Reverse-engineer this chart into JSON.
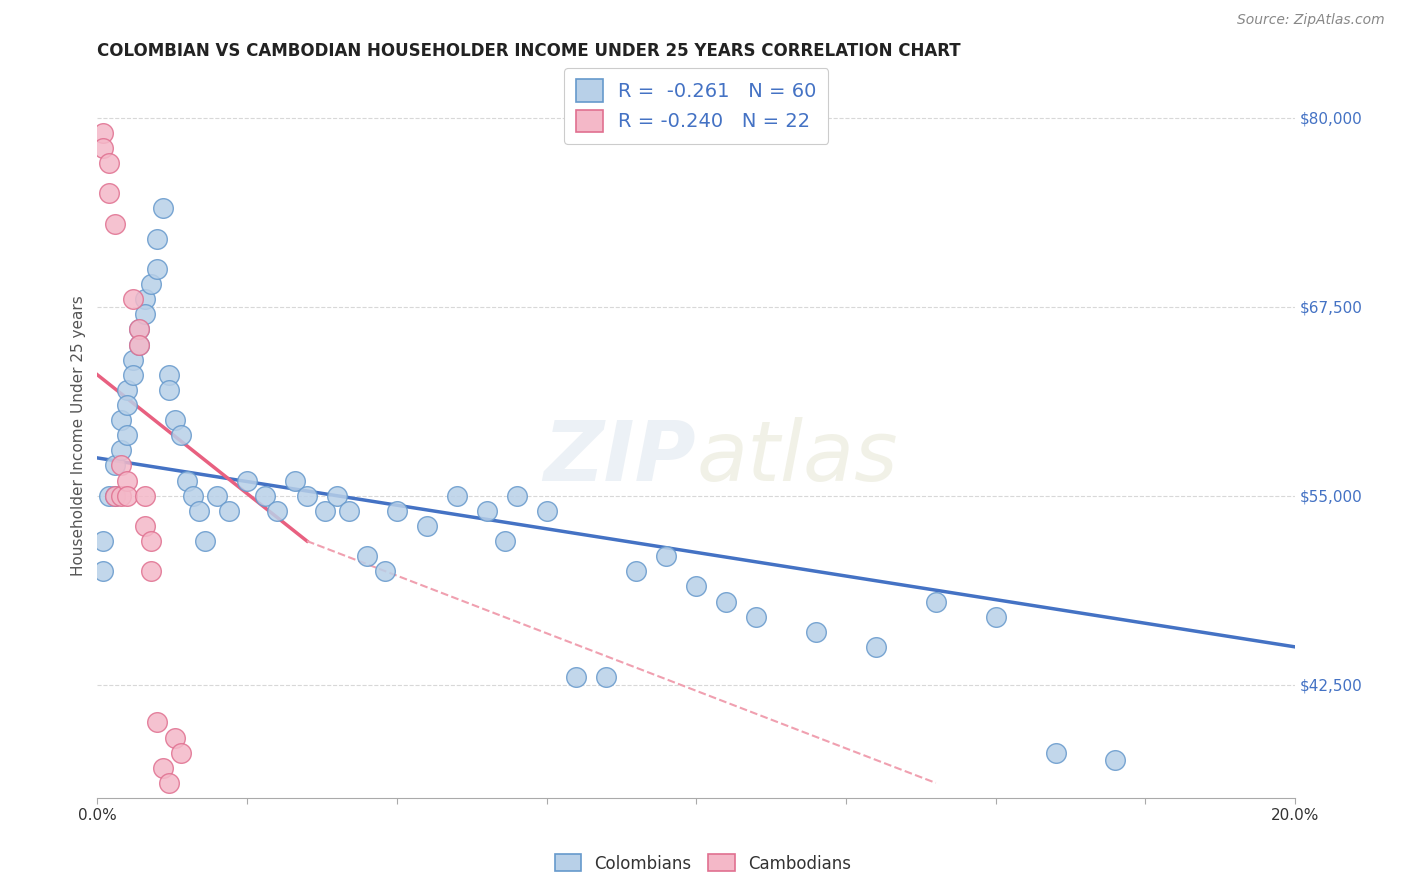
{
  "title": "COLOMBIAN VS CAMBODIAN HOUSEHOLDER INCOME UNDER 25 YEARS CORRELATION CHART",
  "source": "Source: ZipAtlas.com",
  "ylabel": "Householder Income Under 25 years",
  "xlim": [
    0.0,
    0.2
  ],
  "ylim": [
    35000,
    83000
  ],
  "yticks": [
    42500,
    55000,
    67500,
    80000
  ],
  "ytick_labels": [
    "$42,500",
    "$55,000",
    "$67,500",
    "$80,000"
  ],
  "xticks": [
    0.0,
    0.025,
    0.05,
    0.075,
    0.1,
    0.125,
    0.15,
    0.175,
    0.2
  ],
  "xtick_labels": [
    "0.0%",
    "",
    "",
    "",
    "",
    "",
    "",
    "",
    "20.0%"
  ],
  "color_colombian_fill": "#b8d0e8",
  "color_colombian_edge": "#6699cc",
  "color_cambodian_fill": "#f4b8c8",
  "color_cambodian_edge": "#e07090",
  "color_line_colombian": "#4472c4",
  "color_line_cambodian": "#e86080",
  "color_line_cambodian_dashed": "#f0a0b0",
  "watermark": "ZIPatlas",
  "colombian_x": [
    0.001,
    0.001,
    0.002,
    0.003,
    0.003,
    0.004,
    0.004,
    0.005,
    0.005,
    0.005,
    0.006,
    0.006,
    0.007,
    0.007,
    0.008,
    0.008,
    0.009,
    0.01,
    0.01,
    0.011,
    0.012,
    0.012,
    0.013,
    0.014,
    0.015,
    0.016,
    0.017,
    0.018,
    0.02,
    0.022,
    0.025,
    0.028,
    0.03,
    0.033,
    0.035,
    0.038,
    0.04,
    0.042,
    0.045,
    0.048,
    0.05,
    0.055,
    0.06,
    0.065,
    0.068,
    0.07,
    0.075,
    0.08,
    0.085,
    0.09,
    0.095,
    0.1,
    0.105,
    0.11,
    0.12,
    0.13,
    0.14,
    0.15,
    0.16,
    0.17
  ],
  "colombian_y": [
    52000,
    50000,
    55000,
    57000,
    55000,
    60000,
    58000,
    62000,
    61000,
    59000,
    64000,
    63000,
    66000,
    65000,
    68000,
    67000,
    69000,
    72000,
    70000,
    74000,
    63000,
    62000,
    60000,
    59000,
    56000,
    55000,
    54000,
    52000,
    55000,
    54000,
    56000,
    55000,
    54000,
    56000,
    55000,
    54000,
    55000,
    54000,
    51000,
    50000,
    54000,
    53000,
    55000,
    54000,
    52000,
    55000,
    54000,
    43000,
    43000,
    50000,
    51000,
    49000,
    48000,
    47000,
    46000,
    45000,
    48000,
    47000,
    38000,
    37500
  ],
  "cambodian_x": [
    0.001,
    0.001,
    0.002,
    0.002,
    0.003,
    0.003,
    0.004,
    0.004,
    0.005,
    0.005,
    0.006,
    0.007,
    0.007,
    0.008,
    0.008,
    0.009,
    0.009,
    0.01,
    0.011,
    0.012,
    0.013,
    0.014
  ],
  "cambodian_y": [
    79000,
    78000,
    77000,
    75000,
    73000,
    55000,
    57000,
    55000,
    56000,
    55000,
    68000,
    66000,
    65000,
    55000,
    53000,
    52000,
    50000,
    40000,
    37000,
    36000,
    39000,
    38000
  ]
}
